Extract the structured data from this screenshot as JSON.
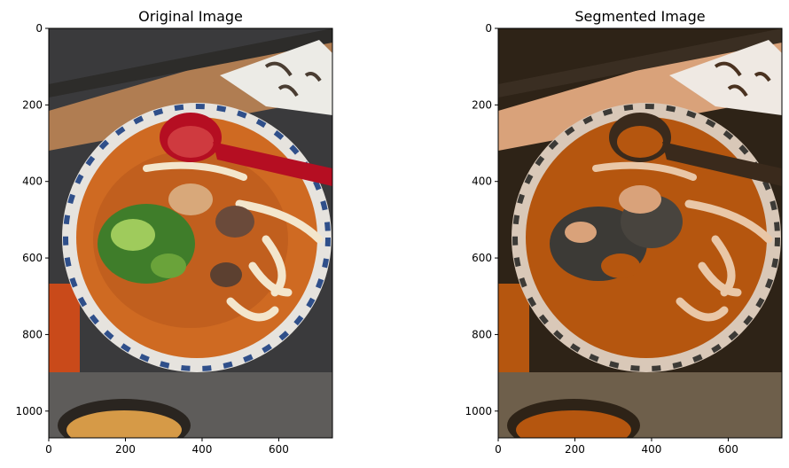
{
  "chart_data": [
    {
      "type": "image",
      "title": "Original Image",
      "xlim": [
        0,
        740
      ],
      "ylim": [
        1070,
        0
      ],
      "xticks": [
        0,
        200,
        400,
        600
      ],
      "yticks": [
        0,
        200,
        400,
        600,
        800,
        1000
      ],
      "palette": [
        "#b8591c",
        "#cf6a22",
        "#8a8476",
        "#b07d52",
        "#2a2520"
      ]
    },
    {
      "type": "image",
      "title": "Segmented Image",
      "xlim": [
        0,
        740
      ],
      "ylim": [
        1070,
        0
      ],
      "xticks": [
        0,
        200,
        400,
        600
      ],
      "yticks": [
        0,
        200,
        400,
        600,
        800,
        1000
      ],
      "palette": [
        "#b5560f",
        "#d9a27a",
        "#3c3a36",
        "#6e5f4b",
        "#2e2317"
      ]
    }
  ]
}
